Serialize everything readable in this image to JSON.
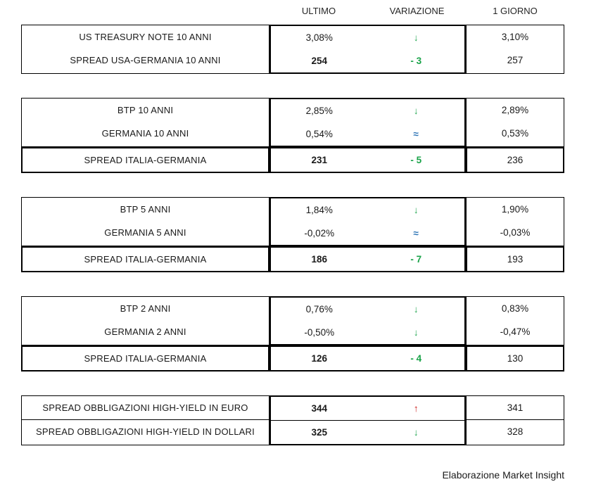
{
  "header": {
    "columns": [
      "ULTIMO",
      "VARIAZIONE",
      "1 GIORNO"
    ]
  },
  "footer": {
    "credit": "Elaborazione Market Insight"
  },
  "colors": {
    "down_green": "#1AA349",
    "up_red": "#CC201E",
    "flat_blue": "#2E75B6",
    "border": "#000000"
  },
  "blocks": [
    {
      "groups": [
        {
          "style": "plain",
          "rows": [
            {
              "label": "US TREASURY NOTE 10 ANNI",
              "ultimo": "3,08%",
              "ultimo_bold": false,
              "variation": {
                "text": "↓",
                "color": "green",
                "kind": "arrow-down-icon"
              },
              "giorno": "3,10%"
            },
            {
              "label": "SPREAD USA-GERMANIA 10 ANNI",
              "ultimo": "254",
              "ultimo_bold": true,
              "variation": {
                "text": "- 3",
                "color": "green",
                "kind": "delta-value"
              },
              "giorno": "257"
            }
          ]
        }
      ]
    },
    {
      "groups": [
        {
          "style": "plain",
          "rows": [
            {
              "label": "BTP 10 ANNI",
              "ultimo": "2,85%",
              "ultimo_bold": false,
              "variation": {
                "text": "↓",
                "color": "green",
                "kind": "arrow-down-icon"
              },
              "giorno": "2,89%"
            },
            {
              "label": "GERMANIA 10 ANNI",
              "ultimo": "0,54%",
              "ultimo_bold": false,
              "variation": {
                "text": "≈",
                "color": "blue",
                "kind": "approx-equal-icon"
              },
              "giorno": "0,53%"
            }
          ]
        },
        {
          "style": "spread",
          "rows": [
            {
              "label": "SPREAD ITALIA-GERMANIA",
              "ultimo": "231",
              "ultimo_bold": true,
              "variation": {
                "text": "- 5",
                "color": "green",
                "kind": "delta-value"
              },
              "giorno": "236"
            }
          ]
        }
      ]
    },
    {
      "groups": [
        {
          "style": "plain",
          "rows": [
            {
              "label": "BTP 5 ANNI",
              "ultimo": "1,84%",
              "ultimo_bold": false,
              "variation": {
                "text": "↓",
                "color": "green",
                "kind": "arrow-down-icon"
              },
              "giorno": "1,90%"
            },
            {
              "label": "GERMANIA 5 ANNI",
              "ultimo": "-0,02%",
              "ultimo_bold": false,
              "variation": {
                "text": "≈",
                "color": "blue",
                "kind": "approx-equal-icon"
              },
              "giorno": "-0,03%"
            }
          ]
        },
        {
          "style": "spread",
          "rows": [
            {
              "label": "SPREAD ITALIA-GERMANIA",
              "ultimo": "186",
              "ultimo_bold": true,
              "variation": {
                "text": "- 7",
                "color": "green",
                "kind": "delta-value"
              },
              "giorno": "193"
            }
          ]
        }
      ]
    },
    {
      "groups": [
        {
          "style": "plain",
          "rows": [
            {
              "label": "BTP 2 ANNI",
              "ultimo": "0,76%",
              "ultimo_bold": false,
              "variation": {
                "text": "↓",
                "color": "green",
                "kind": "arrow-down-icon"
              },
              "giorno": "0,83%"
            },
            {
              "label": "GERMANIA 2 ANNI",
              "ultimo": "-0,50%",
              "ultimo_bold": false,
              "variation": {
                "text": "↓",
                "color": "green",
                "kind": "arrow-down-icon"
              },
              "giorno": "-0,47%"
            }
          ]
        },
        {
          "style": "spread",
          "rows": [
            {
              "label": "SPREAD ITALIA-GERMANIA",
              "ultimo": "126",
              "ultimo_bold": true,
              "variation": {
                "text": "- 4",
                "color": "green",
                "kind": "delta-value"
              },
              "giorno": "130"
            }
          ]
        }
      ]
    },
    {
      "groups": [
        {
          "style": "divided",
          "rows": [
            {
              "label": "SPREAD OBBLIGAZIONI HIGH-YIELD IN EURO",
              "ultimo": "344",
              "ultimo_bold": true,
              "variation": {
                "text": "↑",
                "color": "red",
                "kind": "arrow-up-icon"
              },
              "giorno": "341"
            },
            {
              "label": "SPREAD OBBLIGAZIONI HIGH-YIELD IN DOLLARI",
              "ultimo": "325",
              "ultimo_bold": true,
              "variation": {
                "text": "↓",
                "color": "green",
                "kind": "arrow-down-icon"
              },
              "giorno": "328"
            }
          ]
        }
      ]
    }
  ]
}
